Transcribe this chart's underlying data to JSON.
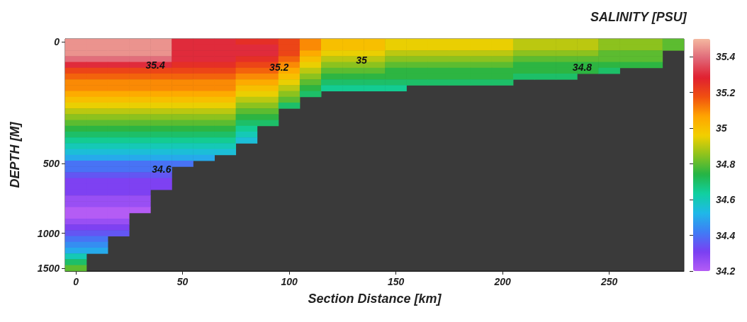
{
  "chart_data": {
    "type": "heatmap",
    "title": "SALINITY [PSU]",
    "xlabel": "Section Distance [km]",
    "ylabel": "DEPTH [M]",
    "categories": [
      "0",
      null,
      null,
      null,
      null,
      "50",
      null,
      null,
      null,
      null,
      "100",
      null,
      null,
      null,
      null,
      "150",
      null,
      null,
      null,
      null,
      "200",
      null,
      null,
      null,
      null,
      "250",
      null,
      null,
      null
    ],
    "y_categories": [
      "0",
      null,
      null,
      null,
      null,
      null,
      null,
      null,
      null,
      null,
      null,
      null,
      null,
      null,
      null,
      null,
      null,
      null,
      null,
      null,
      null,
      "500",
      null,
      null,
      null,
      null,
      null,
      null,
      null,
      null,
      null,
      null,
      null,
      "1000",
      null,
      null,
      null,
      null,
      null,
      "1500"
    ],
    "clim": [
      34.2,
      35.5
    ],
    "cticks": [
      34.2,
      34.4,
      34.6,
      34.8,
      35,
      35.2,
      35.4
    ],
    "colors": [
      "#b45cf5",
      "#7a3ff2",
      "#3f7cf5",
      "#1fb8e8",
      "#10d0a0",
      "#25b445",
      "#8cc21e",
      "#f2d000",
      "#ffa400",
      "#f05010",
      "#e02030",
      "#e06878",
      "#f4b8a0"
    ],
    "annotations": [
      "35.4",
      "35.2",
      "35",
      "34.8",
      "34.6"
    ],
    "cells": [
      [
        35.45,
        35.45,
        35.45,
        35.45,
        35.45,
        35.3,
        35.3,
        35.3,
        35.25,
        35.25,
        35.2,
        35.1,
        35.0,
        35.0,
        35.0,
        34.95,
        34.95,
        34.95,
        34.95,
        34.95,
        34.95,
        34.9,
        34.9,
        34.9,
        34.9,
        34.85,
        34.85,
        34.85,
        34.8
      ],
      [
        35.45,
        35.45,
        35.45,
        35.45,
        35.45,
        35.3,
        35.3,
        35.3,
        35.3,
        35.3,
        35.2,
        35.1,
        35.0,
        35.0,
        35.0,
        34.95,
        34.95,
        34.95,
        34.95,
        34.95,
        34.95,
        34.9,
        34.9,
        34.9,
        34.9,
        34.85,
        34.85,
        34.85,
        34.8
      ],
      [
        35.45,
        35.45,
        35.45,
        35.45,
        35.45,
        35.3,
        35.3,
        35.3,
        35.3,
        35.3,
        35.2,
        35.05,
        34.95,
        34.95,
        34.95,
        34.9,
        34.9,
        34.9,
        34.9,
        34.9,
        34.9,
        34.85,
        34.85,
        34.85,
        34.85,
        34.8,
        34.8,
        34.8,
        null
      ],
      [
        35.4,
        35.4,
        35.4,
        35.4,
        35.4,
        35.3,
        35.3,
        35.3,
        35.25,
        35.25,
        35.15,
        35.0,
        34.9,
        34.9,
        34.9,
        34.85,
        34.85,
        34.85,
        34.85,
        34.85,
        34.85,
        34.8,
        34.8,
        34.8,
        34.8,
        34.8,
        34.8,
        34.8,
        null
      ],
      [
        35.3,
        35.3,
        35.3,
        35.3,
        35.3,
        35.25,
        35.25,
        35.25,
        35.2,
        35.2,
        35.1,
        34.95,
        34.85,
        34.85,
        34.85,
        34.8,
        34.8,
        34.8,
        34.8,
        34.8,
        34.8,
        34.75,
        34.75,
        34.75,
        34.75,
        34.75,
        34.75,
        34.75,
        null
      ],
      [
        35.2,
        35.2,
        35.2,
        35.2,
        35.2,
        35.2,
        35.2,
        35.2,
        35.15,
        35.15,
        35.05,
        34.9,
        34.8,
        34.8,
        34.8,
        34.75,
        34.75,
        34.75,
        34.75,
        34.75,
        34.75,
        34.75,
        34.75,
        34.75,
        34.75,
        34.7,
        null,
        null,
        null
      ],
      [
        35.15,
        35.15,
        35.15,
        35.15,
        35.15,
        35.15,
        35.15,
        35.15,
        35.1,
        35.1,
        35.0,
        34.85,
        34.75,
        34.75,
        34.75,
        34.75,
        34.75,
        34.75,
        34.75,
        34.75,
        34.75,
        34.7,
        34.7,
        34.7,
        null,
        null,
        null,
        null,
        null
      ],
      [
        35.1,
        35.1,
        35.1,
        35.1,
        35.1,
        35.1,
        35.1,
        35.1,
        35.05,
        35.05,
        34.95,
        34.8,
        34.7,
        34.7,
        34.7,
        34.7,
        34.7,
        34.7,
        34.7,
        34.7,
        34.7,
        null,
        null,
        null,
        null,
        null,
        null,
        null,
        null
      ],
      [
        35.1,
        35.1,
        35.1,
        35.1,
        35.1,
        35.1,
        35.1,
        35.1,
        35.0,
        35.0,
        34.9,
        34.75,
        34.65,
        34.65,
        34.65,
        34.65,
        null,
        null,
        null,
        null,
        null,
        null,
        null,
        null,
        null,
        null,
        null,
        null,
        null
      ],
      [
        35.05,
        35.05,
        35.05,
        35.05,
        35.05,
        35.05,
        35.05,
        35.05,
        34.95,
        34.95,
        34.85,
        34.7,
        null,
        null,
        null,
        null,
        null,
        null,
        null,
        null,
        null,
        null,
        null,
        null,
        null,
        null,
        null,
        null,
        null
      ],
      [
        35.0,
        35.0,
        35.0,
        35.0,
        35.0,
        35.0,
        35.0,
        35.0,
        34.9,
        34.9,
        34.8,
        null,
        null,
        null,
        null,
        null,
        null,
        null,
        null,
        null,
        null,
        null,
        null,
        null,
        null,
        null,
        null,
        null,
        null
      ],
      [
        34.95,
        34.95,
        34.95,
        34.95,
        34.95,
        34.95,
        34.95,
        34.95,
        34.85,
        34.85,
        34.7,
        null,
        null,
        null,
        null,
        null,
        null,
        null,
        null,
        null,
        null,
        null,
        null,
        null,
        null,
        null,
        null,
        null,
        null
      ],
      [
        34.9,
        34.9,
        34.9,
        34.9,
        34.9,
        34.9,
        34.9,
        34.9,
        34.8,
        34.8,
        null,
        null,
        null,
        null,
        null,
        null,
        null,
        null,
        null,
        null,
        null,
        null,
        null,
        null,
        null,
        null,
        null,
        null,
        null
      ],
      [
        34.85,
        34.85,
        34.85,
        34.85,
        34.85,
        34.85,
        34.85,
        34.85,
        34.75,
        34.75,
        null,
        null,
        null,
        null,
        null,
        null,
        null,
        null,
        null,
        null,
        null,
        null,
        null,
        null,
        null,
        null,
        null,
        null,
        null
      ],
      [
        34.8,
        34.8,
        34.8,
        34.8,
        34.8,
        34.8,
        34.8,
        34.8,
        34.7,
        34.7,
        null,
        null,
        null,
        null,
        null,
        null,
        null,
        null,
        null,
        null,
        null,
        null,
        null,
        null,
        null,
        null,
        null,
        null,
        null
      ],
      [
        34.75,
        34.75,
        34.75,
        34.75,
        34.75,
        34.75,
        34.75,
        34.75,
        34.65,
        null,
        null,
        null,
        null,
        null,
        null,
        null,
        null,
        null,
        null,
        null,
        null,
        null,
        null,
        null,
        null,
        null,
        null,
        null,
        null
      ],
      [
        34.7,
        34.7,
        34.7,
        34.7,
        34.7,
        34.7,
        34.7,
        34.7,
        34.6,
        null,
        null,
        null,
        null,
        null,
        null,
        null,
        null,
        null,
        null,
        null,
        null,
        null,
        null,
        null,
        null,
        null,
        null,
        null,
        null
      ],
      [
        34.65,
        34.65,
        34.65,
        34.65,
        34.65,
        34.65,
        34.65,
        34.65,
        34.55,
        null,
        null,
        null,
        null,
        null,
        null,
        null,
        null,
        null,
        null,
        null,
        null,
        null,
        null,
        null,
        null,
        null,
        null,
        null,
        null
      ],
      [
        34.6,
        34.6,
        34.6,
        34.6,
        34.6,
        34.6,
        34.6,
        34.6,
        null,
        null,
        null,
        null,
        null,
        null,
        null,
        null,
        null,
        null,
        null,
        null,
        null,
        null,
        null,
        null,
        null,
        null,
        null,
        null,
        null
      ],
      [
        34.55,
        34.55,
        34.55,
        34.55,
        34.55,
        34.55,
        34.55,
        34.55,
        null,
        null,
        null,
        null,
        null,
        null,
        null,
        null,
        null,
        null,
        null,
        null,
        null,
        null,
        null,
        null,
        null,
        null,
        null,
        null,
        null
      ],
      [
        34.5,
        34.5,
        34.5,
        34.5,
        34.5,
        34.5,
        34.5,
        null,
        null,
        null,
        null,
        null,
        null,
        null,
        null,
        null,
        null,
        null,
        null,
        null,
        null,
        null,
        null,
        null,
        null,
        null,
        null,
        null,
        null
      ],
      [
        34.4,
        34.4,
        34.4,
        34.4,
        34.4,
        34.4,
        null,
        null,
        null,
        null,
        null,
        null,
        null,
        null,
        null,
        null,
        null,
        null,
        null,
        null,
        null,
        null,
        null,
        null,
        null,
        null,
        null,
        null,
        null
      ],
      [
        34.4,
        34.4,
        34.4,
        34.4,
        34.4,
        null,
        null,
        null,
        null,
        null,
        null,
        null,
        null,
        null,
        null,
        null,
        null,
        null,
        null,
        null,
        null,
        null,
        null,
        null,
        null,
        null,
        null,
        null,
        null
      ],
      [
        34.35,
        34.35,
        34.35,
        34.35,
        34.35,
        null,
        null,
        null,
        null,
        null,
        null,
        null,
        null,
        null,
        null,
        null,
        null,
        null,
        null,
        null,
        null,
        null,
        null,
        null,
        null,
        null,
        null,
        null,
        null
      ],
      [
        34.3,
        34.3,
        34.3,
        34.3,
        34.3,
        null,
        null,
        null,
        null,
        null,
        null,
        null,
        null,
        null,
        null,
        null,
        null,
        null,
        null,
        null,
        null,
        null,
        null,
        null,
        null,
        null,
        null,
        null,
        null
      ],
      [
        34.3,
        34.3,
        34.3,
        34.3,
        34.3,
        null,
        null,
        null,
        null,
        null,
        null,
        null,
        null,
        null,
        null,
        null,
        null,
        null,
        null,
        null,
        null,
        null,
        null,
        null,
        null,
        null,
        null,
        null,
        null
      ],
      [
        34.3,
        34.3,
        34.3,
        34.3,
        null,
        null,
        null,
        null,
        null,
        null,
        null,
        null,
        null,
        null,
        null,
        null,
        null,
        null,
        null,
        null,
        null,
        null,
        null,
        null,
        null,
        null,
        null,
        null,
        null
      ],
      [
        34.25,
        34.25,
        34.25,
        34.25,
        null,
        null,
        null,
        null,
        null,
        null,
        null,
        null,
        null,
        null,
        null,
        null,
        null,
        null,
        null,
        null,
        null,
        null,
        null,
        null,
        null,
        null,
        null,
        null,
        null
      ],
      [
        34.25,
        34.25,
        34.25,
        34.25,
        null,
        null,
        null,
        null,
        null,
        null,
        null,
        null,
        null,
        null,
        null,
        null,
        null,
        null,
        null,
        null,
        null,
        null,
        null,
        null,
        null,
        null,
        null,
        null,
        null
      ],
      [
        34.2,
        34.2,
        34.2,
        34.2,
        null,
        null,
        null,
        null,
        null,
        null,
        null,
        null,
        null,
        null,
        null,
        null,
        null,
        null,
        null,
        null,
        null,
        null,
        null,
        null,
        null,
        null,
        null,
        null,
        null
      ],
      [
        34.2,
        34.2,
        34.2,
        null,
        null,
        null,
        null,
        null,
        null,
        null,
        null,
        null,
        null,
        null,
        null,
        null,
        null,
        null,
        null,
        null,
        null,
        null,
        null,
        null,
        null,
        null,
        null,
        null,
        null
      ],
      [
        34.25,
        34.25,
        34.25,
        null,
        null,
        null,
        null,
        null,
        null,
        null,
        null,
        null,
        null,
        null,
        null,
        null,
        null,
        null,
        null,
        null,
        null,
        null,
        null,
        null,
        null,
        null,
        null,
        null,
        null
      ],
      [
        34.3,
        34.3,
        34.3,
        null,
        null,
        null,
        null,
        null,
        null,
        null,
        null,
        null,
        null,
        null,
        null,
        null,
        null,
        null,
        null,
        null,
        null,
        null,
        null,
        null,
        null,
        null,
        null,
        null,
        null
      ],
      [
        34.35,
        34.35,
        34.35,
        null,
        null,
        null,
        null,
        null,
        null,
        null,
        null,
        null,
        null,
        null,
        null,
        null,
        null,
        null,
        null,
        null,
        null,
        null,
        null,
        null,
        null,
        null,
        null,
        null,
        null
      ],
      [
        34.4,
        34.4,
        null,
        null,
        null,
        null,
        null,
        null,
        null,
        null,
        null,
        null,
        null,
        null,
        null,
        null,
        null,
        null,
        null,
        null,
        null,
        null,
        null,
        null,
        null,
        null,
        null,
        null,
        null
      ],
      [
        34.45,
        34.45,
        null,
        null,
        null,
        null,
        null,
        null,
        null,
        null,
        null,
        null,
        null,
        null,
        null,
        null,
        null,
        null,
        null,
        null,
        null,
        null,
        null,
        null,
        null,
        null,
        null,
        null,
        null
      ],
      [
        34.5,
        34.5,
        null,
        null,
        null,
        null,
        null,
        null,
        null,
        null,
        null,
        null,
        null,
        null,
        null,
        null,
        null,
        null,
        null,
        null,
        null,
        null,
        null,
        null,
        null,
        null,
        null,
        null,
        null
      ],
      [
        34.6,
        null,
        null,
        null,
        null,
        null,
        null,
        null,
        null,
        null,
        null,
        null,
        null,
        null,
        null,
        null,
        null,
        null,
        null,
        null,
        null,
        null,
        null,
        null,
        null,
        null,
        null,
        null,
        null
      ],
      [
        34.7,
        null,
        null,
        null,
        null,
        null,
        null,
        null,
        null,
        null,
        null,
        null,
        null,
        null,
        null,
        null,
        null,
        null,
        null,
        null,
        null,
        null,
        null,
        null,
        null,
        null,
        null,
        null,
        null
      ],
      [
        34.8,
        null,
        null,
        null,
        null,
        null,
        null,
        null,
        null,
        null,
        null,
        null,
        null,
        null,
        null,
        null,
        null,
        null,
        null,
        null,
        null,
        null,
        null,
        null,
        null,
        null,
        null,
        null,
        null
      ]
    ]
  }
}
